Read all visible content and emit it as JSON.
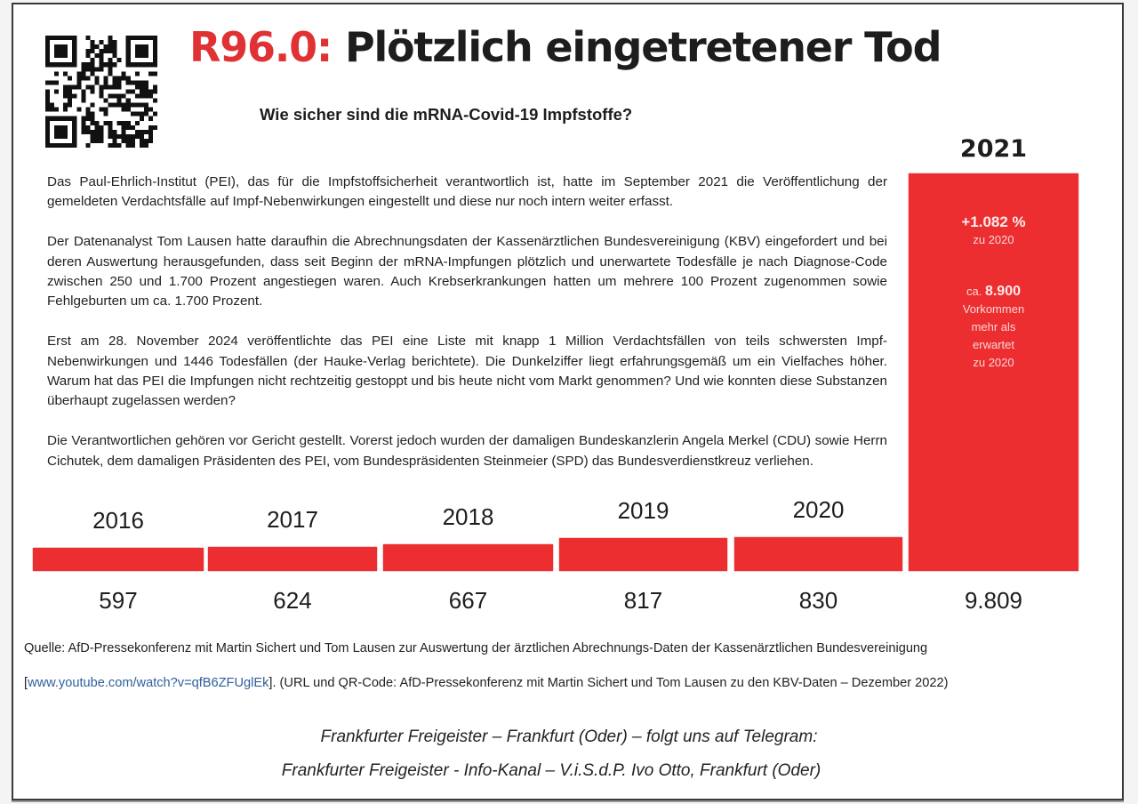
{
  "header": {
    "title_code": "R96.0:",
    "title_text": " Plötzlich eingetretener Tod",
    "subtitle": "Wie sicher sind die mRNA-Covid-19 Impfstoffe?"
  },
  "qr_code": {
    "icon": "qr-code-icon"
  },
  "body": {
    "paragraphs": [
      "Das Paul-Ehrlich-Institut (PEI), das für die Impfstoffsicherheit verantwortlich ist, hatte im September 2021 die Veröffentlichung der gemeldeten Verdachtsfälle auf Impf-Nebenwirkungen eingestellt und diese nur noch intern weiter erfasst.",
      "Der Datenanalyst Tom Lausen hatte daraufhin die Abrechnungsdaten der Kassenärztlichen Bundesvereinigung (KBV) eingefordert und bei deren Auswertung herausgefunden, dass seit Beginn der mRNA-Impfungen plötzlich und unerwartete Todesfälle je nach Diagnose-Code zwischen 250 und 1.700 Prozent angestiegen waren. Auch Krebserkrankungen hatten um mehrere 100 Prozent zugenommen sowie Fehlgeburten um ca. 1.700 Prozent.",
      "Erst am 28. November 2024 veröffentlichte das PEI eine Liste mit knapp 1 Million Verdachtsfällen von teils schwersten Impf-Nebenwirkungen und 1446 Todesfällen (der Hauke-Verlag berichtete). Die Dunkelziffer liegt erfahrungsgemäß um ein Vielfaches höher. Warum hat das PEI die Impfungen nicht rechtzeitig gestoppt und bis heute nicht vom Markt genommen? Und wie konnten diese Substanzen überhaupt zugelassen werden?",
      "Die Verantwortlichen gehören vor Gericht gestellt. Vorerst jedoch wurden der damaligen Bundeskanzlerin Angela Merkel (CDU) sowie Herrn Cichutek, dem damaligen Präsidenten des PEI, vom Bundespräsidenten Steinmeier (SPD) das Bundesverdienstkreuz verliehen."
    ]
  },
  "chart_data": {
    "type": "bar",
    "title": "R96.0: Plötzlich eingetretener Tod",
    "xlabel": "",
    "ylabel": "",
    "grid": false,
    "categories": [
      "2016",
      "2017",
      "2018",
      "2019",
      "2020",
      "2021"
    ],
    "values": [
      597,
      624,
      667,
      817,
      830,
      9809
    ],
    "value_labels": [
      "597",
      "624",
      "667",
      "817",
      "830",
      "9.809"
    ],
    "annotations": {
      "2021": {
        "pct_change": "+1.082 %",
        "pct_ref": "zu 2020",
        "excess_prefix": "ca.",
        "excess_value": "8.900",
        "excess_lines": [
          "Vorkommen",
          "mehr als",
          "erwartet",
          "zu 2020"
        ]
      }
    },
    "bar_color": "#ed2e30",
    "highlight_color": "#e03234"
  },
  "source": {
    "line1": "Quelle: AfD-Pressekonferenz mit Martin Sichert und Tom Lausen zur Auswertung der ärztlichen Abrechnungs-Daten der Kassenärztlichen Bundesvereinigung",
    "link_open": "[",
    "link": "www.youtube.com/watch?v=qfB6ZFUglEk",
    "link_close": "]. (URL und QR-Code: AfD-Pressekonferenz mit Martin Sichert und Tom Lausen zu den KBV-Daten – Dezember 2022)"
  },
  "footer": {
    "line1": "Frankfurter Freigeister – Frankfurt (Oder) – folgt uns auf Telegram:",
    "line2": "Frankfurter Freigeister - Info-Kanal  – V.i.S.d.P. Ivo Otto, Frankfurt (Oder)"
  },
  "colors": {
    "accent_red": "#e03234",
    "bar_red": "#ed2e30",
    "link_blue": "#2f5f9a"
  }
}
